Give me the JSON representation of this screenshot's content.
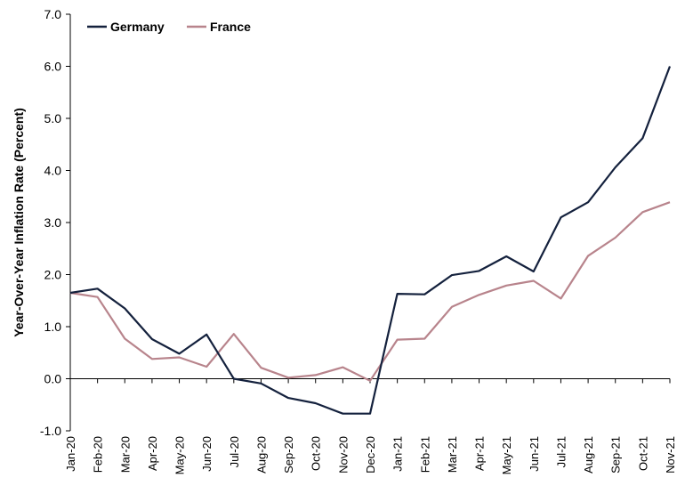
{
  "chart_data": {
    "type": "line",
    "title": "",
    "xlabel": "",
    "ylabel": "Year-Over-Year Inflation Rate (Percent)",
    "ylim": [
      -1.0,
      7.0
    ],
    "yticks": [
      "-1.0",
      "0.0",
      "1.0",
      "2.0",
      "3.0",
      "4.0",
      "5.0",
      "6.0",
      "7.0"
    ],
    "categories": [
      "Jan-20",
      "Feb-20",
      "Mar-20",
      "Apr-20",
      "May-20",
      "Jun-20",
      "Jul-20",
      "Aug-20",
      "Sep-20",
      "Oct-20",
      "Nov-20",
      "Dec-20",
      "Jan-21",
      "Feb-21",
      "Mar-21",
      "Apr-21",
      "May-21",
      "Jun-21",
      "Jul-21",
      "Aug-21",
      "Sep-21",
      "Oct-21",
      "Nov-21"
    ],
    "legend_position": "top-left",
    "grid": false,
    "series": [
      {
        "name": "Germany",
        "color": "#14213d",
        "values": [
          1.65,
          1.73,
          1.35,
          0.76,
          0.48,
          0.85,
          0.0,
          -0.09,
          -0.37,
          -0.47,
          -0.67,
          -0.67,
          1.63,
          1.62,
          1.99,
          2.07,
          2.35,
          2.06,
          3.1,
          3.39,
          4.06,
          4.62,
          6.0
        ]
      },
      {
        "name": "France",
        "color": "#b8848c",
        "values": [
          1.65,
          1.57,
          0.77,
          0.38,
          0.41,
          0.23,
          0.86,
          0.21,
          0.02,
          0.07,
          0.22,
          -0.04,
          0.75,
          0.77,
          1.38,
          1.61,
          1.79,
          1.88,
          1.54,
          2.36,
          2.71,
          3.2,
          3.39
        ]
      }
    ]
  }
}
